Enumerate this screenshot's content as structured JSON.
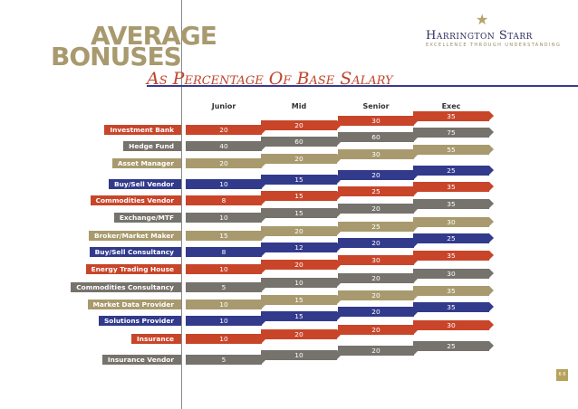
{
  "header": {
    "title_line1": "AVERAGE",
    "title_line2": "BONUSES",
    "subtitle": "As Percentage Of Base Salary"
  },
  "logo": {
    "name": "Harrington Starr",
    "tagline": "EXCELLENCE THROUGH UNDERSTANDING",
    "icon": "star-icon"
  },
  "colors": {
    "orange": "#c8452a",
    "gray": "#76726c",
    "gold": "#a89a6e",
    "blue": "#323a8c"
  },
  "page_number": "6 6",
  "chart_data": {
    "type": "table",
    "title": "AVERAGE BONUSES",
    "subtitle": "As Percentage Of Base Salary",
    "columns": [
      "Junior",
      "Mid",
      "Senior",
      "Exec"
    ],
    "rows": [
      {
        "label": "Investment Bank",
        "color": "orange",
        "values": [
          20,
          20,
          30,
          35
        ]
      },
      {
        "label": "Hedge Fund",
        "color": "gray",
        "values": [
          40,
          60,
          60,
          75
        ]
      },
      {
        "label": "Asset Manager",
        "color": "gold",
        "values": [
          20,
          20,
          30,
          55
        ]
      },
      {
        "label": "Buy/Sell Vendor",
        "color": "blue",
        "values": [
          10,
          15,
          20,
          25
        ]
      },
      {
        "label": "Commodities Vendor",
        "color": "orange",
        "values": [
          8,
          15,
          25,
          35
        ]
      },
      {
        "label": "Exchange/MTF",
        "color": "gray",
        "values": [
          10,
          15,
          20,
          35
        ]
      },
      {
        "label": "Broker/Market Maker",
        "color": "gold",
        "values": [
          15,
          20,
          25,
          30
        ]
      },
      {
        "label": "Buy/Sell Consultancy",
        "color": "blue",
        "values": [
          8,
          12,
          20,
          25
        ]
      },
      {
        "label": "Energy Trading House",
        "color": "orange",
        "values": [
          10,
          20,
          30,
          35
        ]
      },
      {
        "label": "Commodities Consultancy",
        "color": "gray",
        "values": [
          5,
          10,
          20,
          30
        ]
      },
      {
        "label": "Market Data Provider",
        "color": "gold",
        "values": [
          10,
          15,
          20,
          35
        ]
      },
      {
        "label": "Solutions Provider",
        "color": "blue",
        "values": [
          10,
          15,
          20,
          35
        ]
      },
      {
        "label": "Insurance",
        "color": "orange",
        "values": [
          10,
          20,
          20,
          30
        ]
      },
      {
        "label": "Insurance Vendor",
        "color": "gray",
        "values": [
          5,
          10,
          20,
          25
        ]
      }
    ]
  }
}
